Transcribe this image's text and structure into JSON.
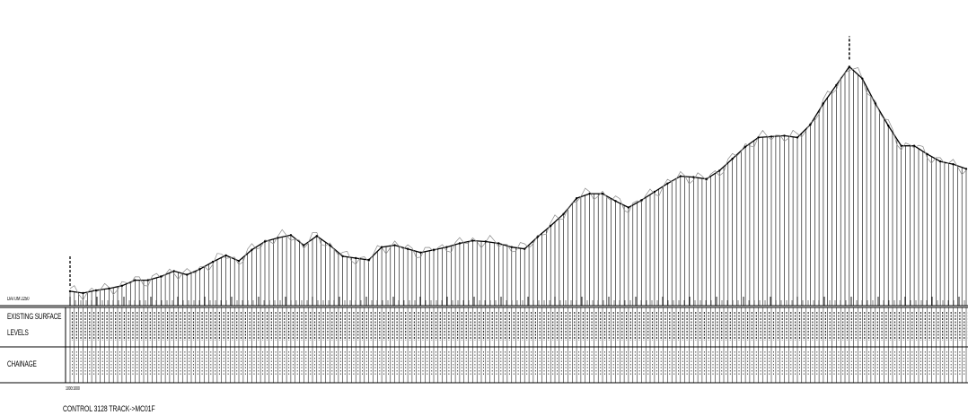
{
  "drawing": {
    "datum_label": "DATUM 2250",
    "row_labels": {
      "existing_line1": "EXISTING SURFACE",
      "existing_line2": "LEVELS",
      "chainage": "CHAINAGE"
    },
    "title": "CONTROL 3128 TRACK->MC01F",
    "scale_note": "1000:1000"
  },
  "chart_data": {
    "type": "line",
    "x_unit": "chainage_index",
    "y_unit": "relative_level",
    "series": [
      {
        "values": [
          {
            "x": 0,
            "y": 2
          },
          {
            "x": 1,
            "y": 0
          },
          {
            "x": 2,
            "y": 3
          },
          {
            "x": 3,
            "y": 5
          },
          {
            "x": 4,
            "y": 8
          },
          {
            "x": 5,
            "y": 14
          },
          {
            "x": 6,
            "y": 14
          },
          {
            "x": 7,
            "y": 18
          },
          {
            "x": 8,
            "y": 24
          },
          {
            "x": 9,
            "y": 20
          },
          {
            "x": 10,
            "y": 26
          },
          {
            "x": 11,
            "y": 34
          },
          {
            "x": 12,
            "y": 41
          },
          {
            "x": 13,
            "y": 35
          },
          {
            "x": 14,
            "y": 47
          },
          {
            "x": 15,
            "y": 56
          },
          {
            "x": 16,
            "y": 60
          },
          {
            "x": 17,
            "y": 63
          },
          {
            "x": 18,
            "y": 52
          },
          {
            "x": 19,
            "y": 62
          },
          {
            "x": 20,
            "y": 52
          },
          {
            "x": 21,
            "y": 40
          },
          {
            "x": 22,
            "y": 38
          },
          {
            "x": 23,
            "y": 36
          },
          {
            "x": 24,
            "y": 50
          },
          {
            "x": 25,
            "y": 52
          },
          {
            "x": 26,
            "y": 48
          },
          {
            "x": 27,
            "y": 44
          },
          {
            "x": 28,
            "y": 47
          },
          {
            "x": 29,
            "y": 50
          },
          {
            "x": 30,
            "y": 54
          },
          {
            "x": 31,
            "y": 57
          },
          {
            "x": 32,
            "y": 56
          },
          {
            "x": 33,
            "y": 54
          },
          {
            "x": 34,
            "y": 50
          },
          {
            "x": 35,
            "y": 48
          },
          {
            "x": 36,
            "y": 61
          },
          {
            "x": 37,
            "y": 73
          },
          {
            "x": 38,
            "y": 86
          },
          {
            "x": 39,
            "y": 103
          },
          {
            "x": 40,
            "y": 108
          },
          {
            "x": 41,
            "y": 108
          },
          {
            "x": 42,
            "y": 100
          },
          {
            "x": 43,
            "y": 93
          },
          {
            "x": 44,
            "y": 101
          },
          {
            "x": 45,
            "y": 110
          },
          {
            "x": 46,
            "y": 119
          },
          {
            "x": 47,
            "y": 127
          },
          {
            "x": 48,
            "y": 126
          },
          {
            "x": 49,
            "y": 124
          },
          {
            "x": 50,
            "y": 133
          },
          {
            "x": 51,
            "y": 146
          },
          {
            "x": 52,
            "y": 159
          },
          {
            "x": 53,
            "y": 169
          },
          {
            "x": 54,
            "y": 170
          },
          {
            "x": 55,
            "y": 171
          },
          {
            "x": 56,
            "y": 169
          },
          {
            "x": 57,
            "y": 183
          },
          {
            "x": 58,
            "y": 206
          },
          {
            "x": 59,
            "y": 226
          },
          {
            "x": 60,
            "y": 246
          },
          {
            "x": 61,
            "y": 233
          },
          {
            "x": 62,
            "y": 206
          },
          {
            "x": 63,
            "y": 182
          },
          {
            "x": 64,
            "y": 160
          },
          {
            "x": 65,
            "y": 160
          },
          {
            "x": 66,
            "y": 151
          },
          {
            "x": 67,
            "y": 143
          },
          {
            "x": 68,
            "y": 140
          },
          {
            "x": 69,
            "y": 135
          }
        ]
      }
    ]
  }
}
